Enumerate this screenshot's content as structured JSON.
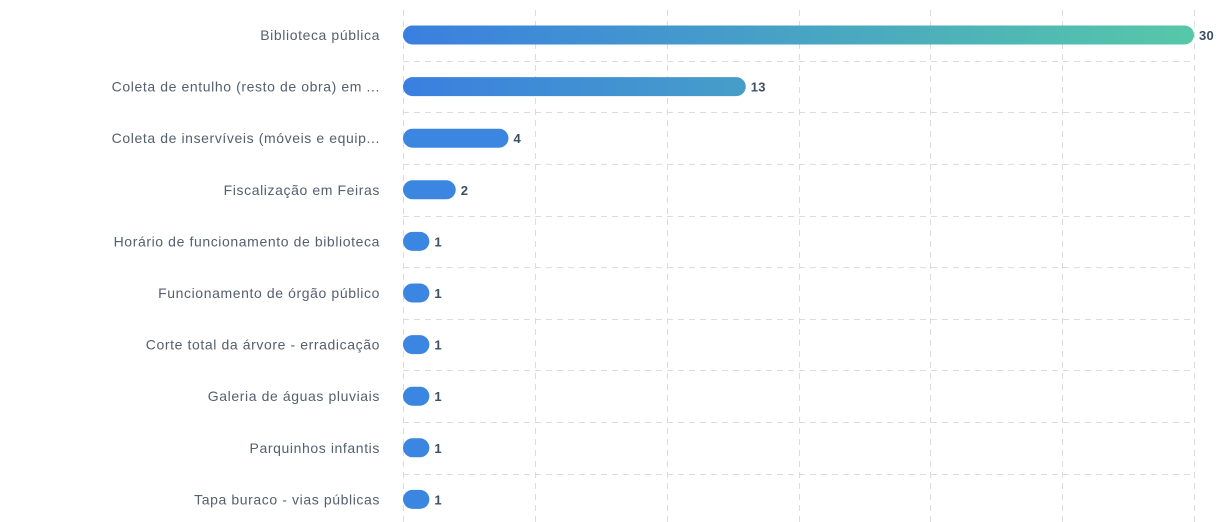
{
  "chart_data": {
    "type": "bar",
    "orientation": "horizontal",
    "categories": [
      "Biblioteca pública",
      "Coleta de entulho (resto de obra) em ...",
      "Coleta de inservíveis (móveis e equip...",
      "Fiscalização em Feiras",
      "Horário de funcionamento de biblioteca",
      "Funcionamento de órgão público",
      "Corte total da árvore - erradicação",
      "Galeria de águas pluviais",
      "Parquinhos infantis",
      "Tapa buraco - vias públicas"
    ],
    "values": [
      30,
      13,
      4,
      2,
      1,
      1,
      1,
      1,
      1,
      1
    ],
    "xlim": [
      0,
      30
    ],
    "grid": true,
    "colors": {
      "bar_start": "#3a7fe0",
      "bar_end": "#56c8a8",
      "bar_solid": "#3a86e0",
      "grid": "#dcdcdc",
      "label": "#55606e",
      "value": "#3d4f66"
    }
  }
}
